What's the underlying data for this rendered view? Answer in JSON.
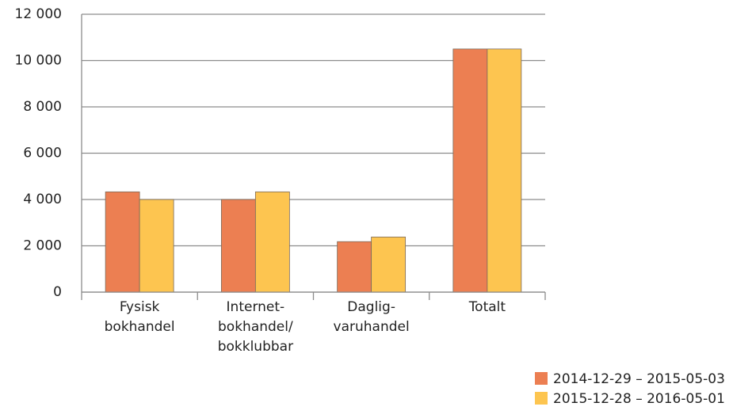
{
  "chart_data": {
    "type": "bar",
    "categories": [
      [
        "Fysisk",
        "bokhandel"
      ],
      [
        "Internet-",
        "bokhandel/",
        "bokklubbar"
      ],
      [
        "Daglig-",
        "varuhandel"
      ],
      [
        "Totalt"
      ]
    ],
    "series": [
      {
        "name": "2014-12-29 – 2015-05-03",
        "color": "#ec7f52",
        "values": [
          4330,
          4000,
          2180,
          10500
        ]
      },
      {
        "name": "2015-12-28 – 2016-05-01",
        "color": "#fdc550",
        "values": [
          4000,
          4330,
          2380,
          10500
        ]
      }
    ],
    "ylim": [
      0,
      12000
    ],
    "yticks": [
      0,
      {
        "value": 2000,
        "label": "2 000"
      },
      {
        "value": 4000,
        "label": "4 000"
      },
      {
        "value": 6000,
        "label": "6 000"
      },
      {
        "value": 8000,
        "label": "8 000"
      },
      {
        "value": 10000,
        "label": "10 000"
      },
      {
        "value": 12000,
        "label": "12 000"
      }
    ],
    "grid": true,
    "legend": "bottom-right"
  }
}
